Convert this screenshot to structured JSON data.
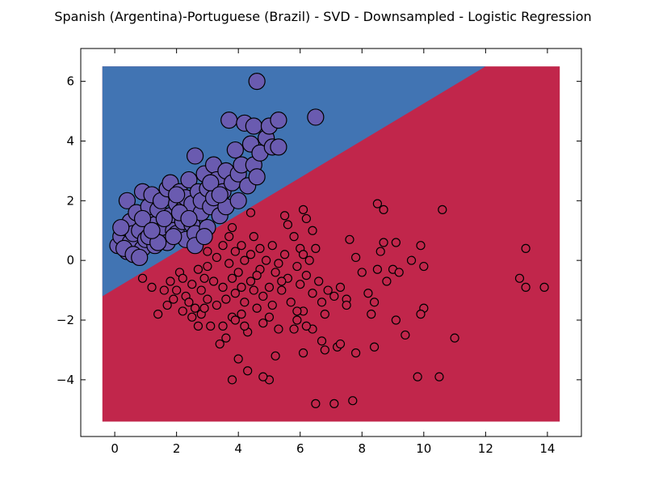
{
  "chart_data": {
    "type": "scatter",
    "title": "Spanish (Argentina)-Portuguese (Brazil) - SVD - Downsampled - Logistic Regression",
    "xlabel": "",
    "ylabel": "",
    "xlim": [
      -1.1,
      15.1
    ],
    "ylim": [
      -5.9,
      7.1
    ],
    "grid": false,
    "legend": "none",
    "x_ticks": [
      0,
      2,
      4,
      6,
      8,
      10,
      12,
      14
    ],
    "y_ticks": [
      -4,
      -2,
      0,
      2,
      4,
      6
    ],
    "x_tick_labels": [
      "0",
      "2",
      "4",
      "6",
      "8",
      "10",
      "12",
      "14"
    ],
    "y_tick_labels": [
      "−4",
      "−2",
      "0",
      "2",
      "4",
      "6"
    ],
    "decision_region": {
      "x_range": [
        -0.4,
        14.4
      ],
      "y_range": [
        -5.4,
        6.5
      ],
      "boundary_line": [
        [
          -0.4,
          -1.2
        ],
        [
          12.0,
          6.5
        ]
      ],
      "upper_class_color": "#4174b3",
      "lower_class_color": "#c1264b"
    },
    "series": [
      {
        "marker_color": "#c1264b",
        "marker": "small-circle",
        "points": [
          [
            0.9,
            -0.6
          ],
          [
            1.2,
            -0.9
          ],
          [
            1.4,
            -1.8
          ],
          [
            1.6,
            -1.0
          ],
          [
            1.7,
            -1.5
          ],
          [
            1.8,
            -0.7
          ],
          [
            2.0,
            -1.0
          ],
          [
            2.1,
            -0.4
          ],
          [
            2.2,
            -0.6
          ],
          [
            2.3,
            -1.2
          ],
          [
            2.4,
            -1.4
          ],
          [
            2.5,
            -1.9
          ],
          [
            2.5,
            -0.8
          ],
          [
            2.6,
            -1.6
          ],
          [
            2.7,
            -0.3
          ],
          [
            2.8,
            -1.0
          ],
          [
            2.8,
            -1.8
          ],
          [
            2.9,
            -0.6
          ],
          [
            3.0,
            -1.3
          ],
          [
            3.0,
            -0.2
          ],
          [
            3.1,
            -2.2
          ],
          [
            3.2,
            -0.7
          ],
          [
            3.3,
            0.1
          ],
          [
            3.3,
            -1.5
          ],
          [
            3.4,
            -2.8
          ],
          [
            3.5,
            -0.9
          ],
          [
            3.5,
            0.5
          ],
          [
            3.6,
            -1.3
          ],
          [
            3.7,
            -0.1
          ],
          [
            3.7,
            0.8
          ],
          [
            3.8,
            -0.6
          ],
          [
            3.8,
            -1.9
          ],
          [
            3.8,
            -4.0
          ],
          [
            3.9,
            -1.1
          ],
          [
            3.9,
            0.3
          ],
          [
            4.0,
            -0.4
          ],
          [
            4.0,
            -3.3
          ],
          [
            4.1,
            -0.9
          ],
          [
            4.1,
            0.5
          ],
          [
            4.2,
            -1.4
          ],
          [
            4.2,
            0.0
          ],
          [
            4.3,
            -2.4
          ],
          [
            4.3,
            -3.7
          ],
          [
            4.4,
            -0.7
          ],
          [
            4.4,
            0.2
          ],
          [
            4.5,
            -1.0
          ],
          [
            4.5,
            0.8
          ],
          [
            4.6,
            -1.6
          ],
          [
            4.7,
            -0.3
          ],
          [
            4.7,
            0.4
          ],
          [
            4.8,
            -1.2
          ],
          [
            4.8,
            -2.1
          ],
          [
            4.9,
            0.0
          ],
          [
            5.0,
            -0.9
          ],
          [
            5.0,
            -4.0
          ],
          [
            5.1,
            0.5
          ],
          [
            5.1,
            -1.5
          ],
          [
            5.2,
            -0.4
          ],
          [
            5.2,
            -3.2
          ],
          [
            5.3,
            -2.3
          ],
          [
            5.3,
            -0.1
          ],
          [
            5.4,
            -1.0
          ],
          [
            5.5,
            0.2
          ],
          [
            5.5,
            1.5
          ],
          [
            5.6,
            -0.6
          ],
          [
            5.7,
            -1.4
          ],
          [
            5.8,
            0.8
          ],
          [
            5.9,
            -0.2
          ],
          [
            5.9,
            -2.0
          ],
          [
            6.0,
            -0.8
          ],
          [
            6.0,
            0.4
          ],
          [
            6.1,
            -1.7
          ],
          [
            6.1,
            1.7
          ],
          [
            6.2,
            -0.5
          ],
          [
            6.3,
            0.0
          ],
          [
            6.4,
            -1.1
          ],
          [
            6.5,
            0.4
          ],
          [
            6.6,
            -0.7
          ],
          [
            6.7,
            -1.4
          ],
          [
            6.8,
            -3.0
          ],
          [
            6.9,
            -1.0
          ],
          [
            7.1,
            -1.2
          ],
          [
            7.2,
            -2.9
          ],
          [
            7.3,
            -0.9
          ],
          [
            7.5,
            -1.3
          ],
          [
            7.6,
            0.7
          ],
          [
            7.7,
            -4.7
          ],
          [
            7.8,
            0.1
          ],
          [
            8.0,
            -0.4
          ],
          [
            8.2,
            -1.1
          ],
          [
            8.4,
            -1.4
          ],
          [
            8.5,
            -0.3
          ],
          [
            8.6,
            0.3
          ],
          [
            8.7,
            0.6
          ],
          [
            8.8,
            -0.7
          ],
          [
            9.0,
            -0.3
          ],
          [
            9.1,
            -2.0
          ],
          [
            9.2,
            -0.4
          ],
          [
            9.4,
            -2.5
          ],
          [
            9.6,
            0.0
          ],
          [
            9.8,
            -3.9
          ],
          [
            9.9,
            0.5
          ],
          [
            10.0,
            -0.2
          ],
          [
            10.0,
            -1.6
          ],
          [
            10.5,
            -3.9
          ],
          [
            10.6,
            1.7
          ],
          [
            11.0,
            -2.6
          ],
          [
            13.1,
            -0.6
          ],
          [
            13.3,
            0.4
          ],
          [
            13.3,
            -0.9
          ],
          [
            13.9,
            -0.9
          ],
          [
            6.5,
            -4.8
          ],
          [
            7.1,
            -4.8
          ],
          [
            7.8,
            -3.1
          ],
          [
            8.4,
            -2.9
          ],
          [
            8.5,
            1.9
          ],
          [
            8.7,
            1.7
          ],
          [
            9.1,
            0.6
          ],
          [
            9.9,
            -1.8
          ],
          [
            6.4,
            -2.3
          ],
          [
            6.2,
            -2.2
          ],
          [
            5.8,
            -2.3
          ],
          [
            6.1,
            -3.1
          ],
          [
            3.6,
            -2.6
          ],
          [
            4.8,
            -3.9
          ],
          [
            4.1,
            -1.8
          ],
          [
            4.2,
            -2.2
          ],
          [
            3.9,
            -2.0
          ],
          [
            3.5,
            -2.2
          ],
          [
            2.7,
            -2.2
          ],
          [
            5.9,
            -1.7
          ],
          [
            5.0,
            -1.9
          ],
          [
            6.7,
            -2.7
          ],
          [
            7.3,
            -2.8
          ],
          [
            6.2,
            1.4
          ],
          [
            5.6,
            1.2
          ],
          [
            6.4,
            1.0
          ],
          [
            6.1,
            0.2
          ],
          [
            5.4,
            -0.7
          ],
          [
            4.6,
            -0.5
          ],
          [
            4.4,
            1.6
          ],
          [
            3.8,
            1.1
          ],
          [
            3.0,
            0.3
          ],
          [
            2.9,
            -1.6
          ],
          [
            2.2,
            -1.7
          ],
          [
            1.9,
            -1.3
          ],
          [
            6.8,
            -1.8
          ],
          [
            7.5,
            -1.5
          ],
          [
            8.3,
            -1.8
          ]
        ]
      },
      {
        "marker_color": "#6a5bb0",
        "marker": "large-circle",
        "points": [
          [
            0.1,
            0.5
          ],
          [
            0.2,
            0.8
          ],
          [
            0.3,
            1.1
          ],
          [
            0.4,
            0.3
          ],
          [
            0.4,
            2.0
          ],
          [
            0.5,
            0.6
          ],
          [
            0.5,
            1.3
          ],
          [
            0.6,
            0.9
          ],
          [
            0.7,
            0.2
          ],
          [
            0.7,
            1.6
          ],
          [
            0.8,
            1.0
          ],
          [
            0.9,
            0.4
          ],
          [
            0.9,
            2.3
          ],
          [
            1.0,
            1.4
          ],
          [
            1.0,
            0.7
          ],
          [
            1.1,
            1.8
          ],
          [
            1.2,
            0.9
          ],
          [
            1.2,
            2.2
          ],
          [
            1.3,
            1.2
          ],
          [
            1.3,
            0.5
          ],
          [
            1.4,
            1.7
          ],
          [
            1.5,
            0.8
          ],
          [
            1.5,
            2.0
          ],
          [
            1.6,
            1.1
          ],
          [
            1.7,
            2.4
          ],
          [
            1.7,
            0.6
          ],
          [
            1.8,
            1.5
          ],
          [
            1.8,
            2.6
          ],
          [
            1.9,
            1.0
          ],
          [
            2.0,
            1.9
          ],
          [
            2.0,
            0.9
          ],
          [
            2.1,
            2.3
          ],
          [
            2.2,
            1.3
          ],
          [
            2.2,
            1.7
          ],
          [
            2.3,
            2.1
          ],
          [
            2.3,
            0.7
          ],
          [
            2.4,
            2.7
          ],
          [
            2.5,
            1.2
          ],
          [
            2.5,
            1.9
          ],
          [
            2.6,
            3.5
          ],
          [
            2.6,
            0.9
          ],
          [
            2.7,
            2.3
          ],
          [
            2.8,
            1.6
          ],
          [
            2.8,
            2.0
          ],
          [
            2.9,
            2.9
          ],
          [
            3.0,
            1.1
          ],
          [
            3.0,
            2.4
          ],
          [
            3.1,
            1.8
          ],
          [
            3.2,
            3.2
          ],
          [
            3.2,
            2.1
          ],
          [
            3.3,
            2.7
          ],
          [
            3.4,
            1.5
          ],
          [
            3.5,
            2.3
          ],
          [
            3.6,
            3.0
          ],
          [
            3.6,
            1.8
          ],
          [
            3.7,
            4.7
          ],
          [
            3.8,
            2.6
          ],
          [
            3.9,
            3.7
          ],
          [
            4.0,
            2.9
          ],
          [
            4.0,
            2.0
          ],
          [
            4.1,
            3.2
          ],
          [
            4.2,
            4.6
          ],
          [
            4.3,
            2.5
          ],
          [
            4.4,
            3.9
          ],
          [
            4.5,
            4.5
          ],
          [
            4.5,
            3.2
          ],
          [
            4.6,
            6.0
          ],
          [
            4.6,
            2.8
          ],
          [
            4.7,
            3.6
          ],
          [
            4.9,
            4.1
          ],
          [
            5.0,
            4.5
          ],
          [
            5.1,
            3.8
          ],
          [
            5.3,
            4.7
          ],
          [
            5.3,
            3.8
          ],
          [
            6.5,
            4.8
          ],
          [
            0.2,
            1.1
          ],
          [
            0.3,
            0.4
          ],
          [
            0.6,
            0.2
          ],
          [
            0.8,
            0.1
          ],
          [
            0.9,
            1.4
          ],
          [
            1.1,
            0.8
          ],
          [
            1.4,
            0.6
          ],
          [
            1.6,
            1.4
          ],
          [
            1.9,
            0.8
          ],
          [
            2.1,
            1.6
          ],
          [
            2.4,
            1.4
          ],
          [
            2.6,
            0.5
          ],
          [
            2.9,
            0.8
          ],
          [
            3.1,
            2.6
          ],
          [
            3.4,
            2.2
          ],
          [
            2.0,
            2.2
          ],
          [
            1.2,
            1.0
          ]
        ]
      }
    ]
  }
}
